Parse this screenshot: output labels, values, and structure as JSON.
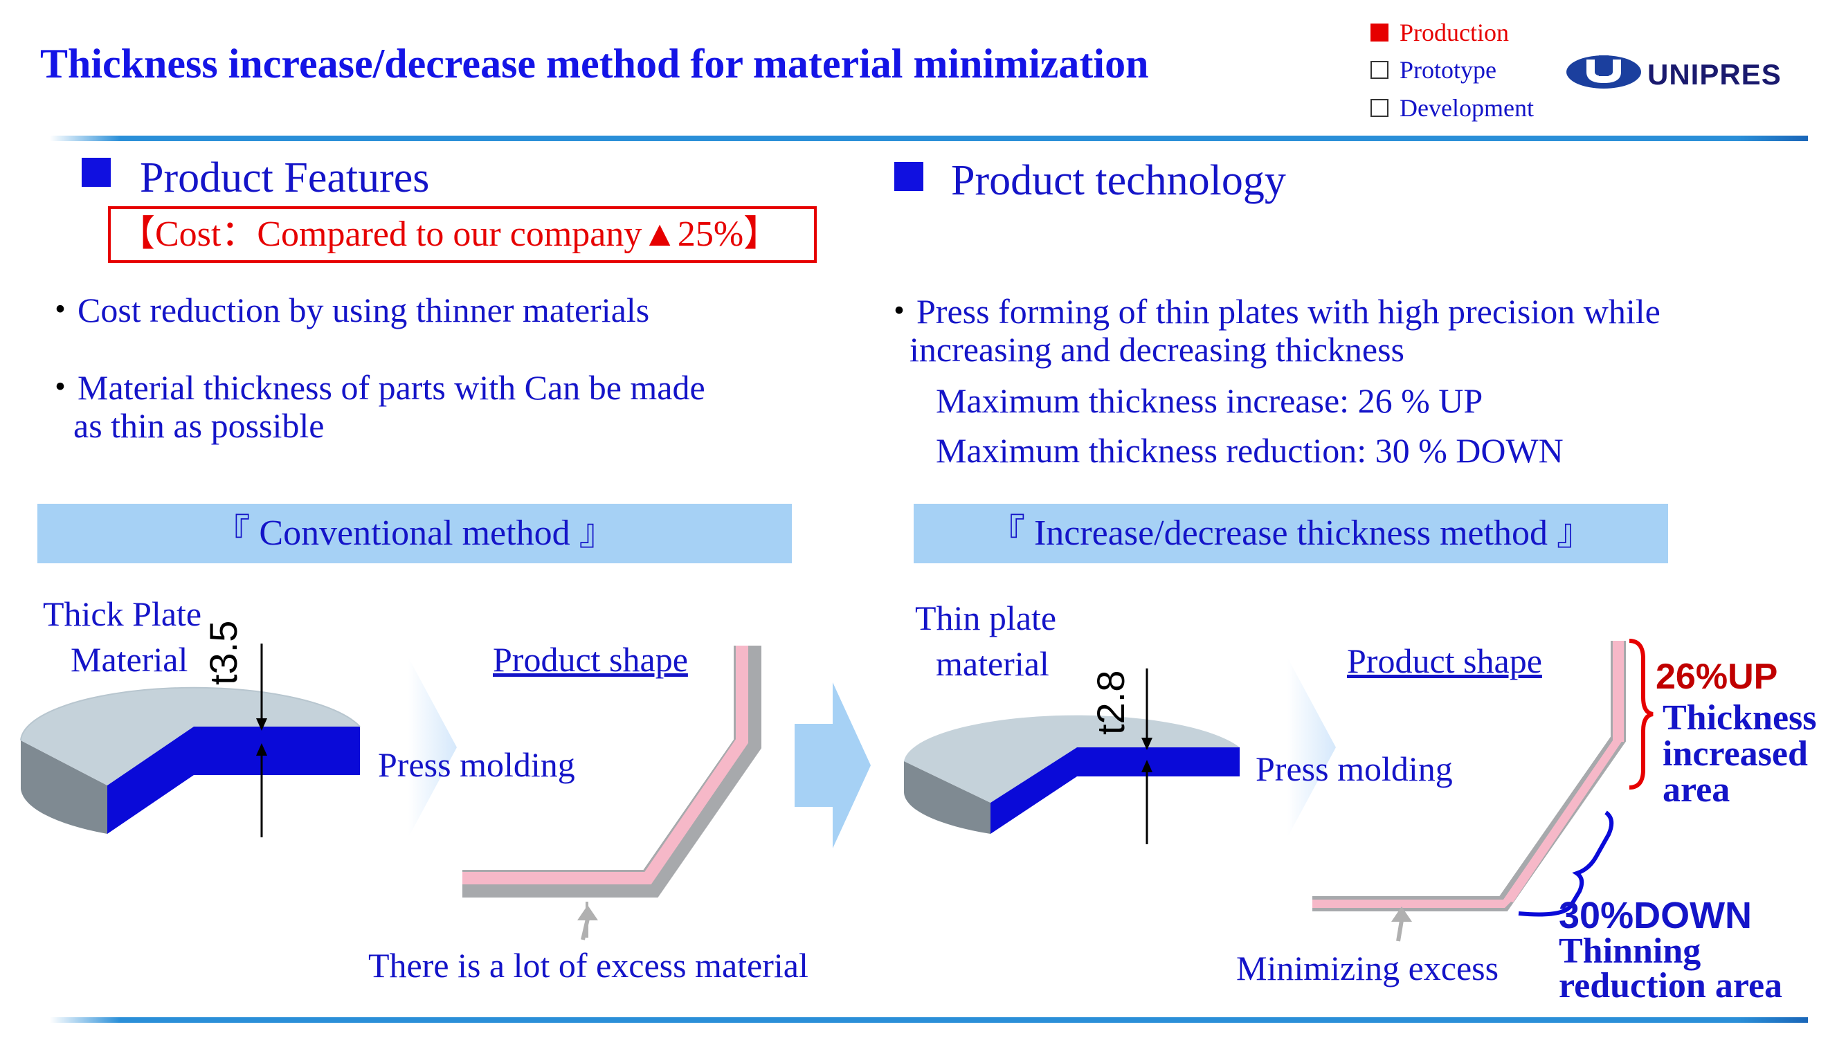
{
  "header": {
    "title": "Thickness increase/decrease method for material minimization",
    "status": [
      {
        "label": "Production",
        "checked": true
      },
      {
        "label": "Prototype",
        "checked": false
      },
      {
        "label": "Development",
        "checked": false
      }
    ],
    "logo_text": "UNIPRES"
  },
  "features": {
    "heading": "Product Features",
    "cost_note": "【Cost：Compared to our company▲25%】",
    "bullet1": "Cost reduction by using thinner materials",
    "bullet2_line1": "Material thickness of parts with   Can be made",
    "bullet2_line2": "as thin as possible",
    "bullet_mark": "・"
  },
  "technology": {
    "heading": "Product technology",
    "bullet_line1": "Press forming of thin plates with high precision while",
    "bullet_line2": "increasing and decreasing thickness",
    "max_increase": "Maximum thickness increase: 26 % UP",
    "max_reduction": "Maximum thickness reduction: 30 % DOWN"
  },
  "conventional": {
    "banner": "『 Conventional method 』",
    "material_line1": "Thick Plate",
    "material_line2": "Material",
    "thickness": "t3.5",
    "press_label": "Press molding",
    "product_label": "Product shape",
    "excess_note": "There is a lot of excess material"
  },
  "new_method": {
    "banner": "『 Increase/decrease thickness method 』",
    "material_line1": "Thin plate",
    "material_line2": "material",
    "thickness": "t2.8",
    "press_label": "Press molding",
    "product_label": "Product shape",
    "excess_note": "Minimizing excess",
    "up_value": "26%UP",
    "up_line1": "Thickness",
    "up_line2": "increased",
    "up_line3": "area",
    "down_value": "30%DOWN",
    "down_line1": "Thinning",
    "down_line2": "reduction area"
  },
  "colors": {
    "text_blue": "#1414c8",
    "accent_red": "#e60000",
    "banner_bg": "#a6d1f5",
    "plate_top": "#c5d2da",
    "plate_side": "#7f8a92",
    "plate_cut": "#0a0ad8",
    "part_pink": "#f6b8c8",
    "part_gray": "#a7a9ac",
    "up_red": "#c00000"
  }
}
